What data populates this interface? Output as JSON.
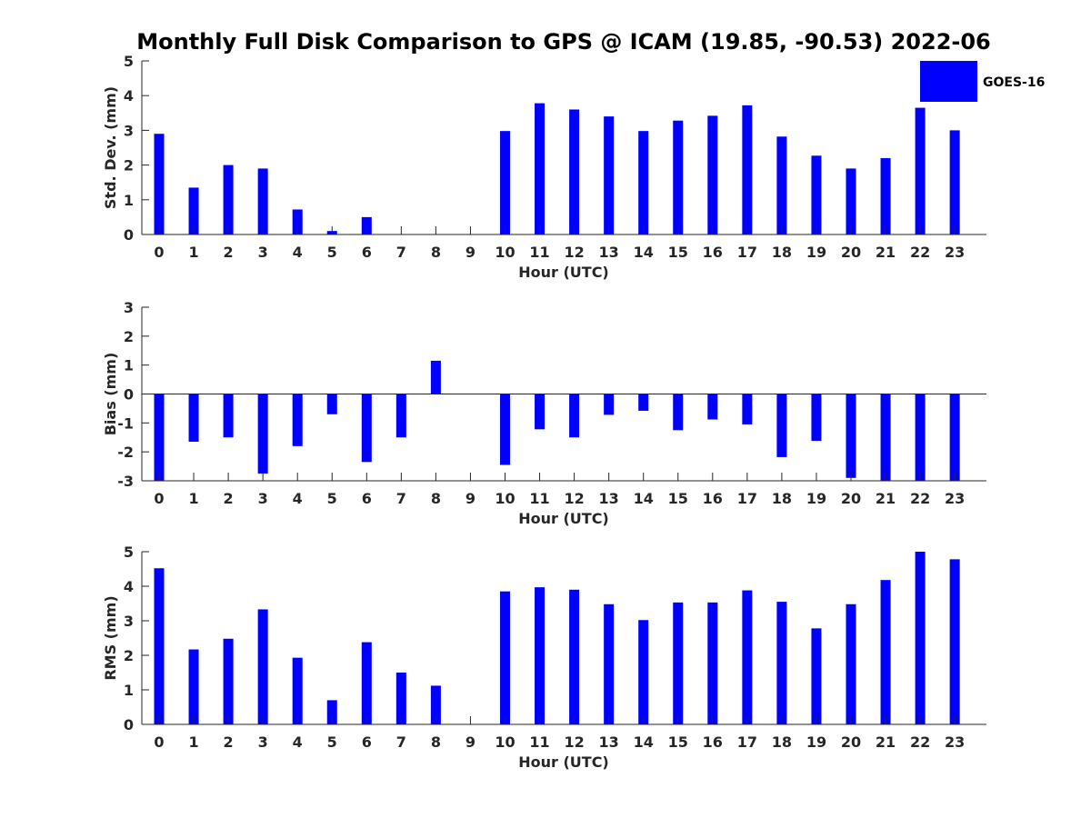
{
  "figure": {
    "title": "Monthly Full Disk Comparison to GPS @ ICAM (19.85, -90.53) 2022-06",
    "background": "#ffffff"
  },
  "legend": {
    "label": "GOES-16",
    "color": "#0000ff",
    "placement": "top-right"
  },
  "chart_data": [
    {
      "type": "bar",
      "panel": "std",
      "title": "",
      "xlabel": "Hour (UTC)",
      "ylabel": "Std. Dev. (mm)",
      "ylim": [
        0,
        5
      ],
      "yticks": [
        0,
        1,
        2,
        3,
        4,
        5
      ],
      "categories": [
        "0",
        "1",
        "2",
        "3",
        "4",
        "5",
        "6",
        "7",
        "8",
        "9",
        "10",
        "11",
        "12",
        "13",
        "14",
        "15",
        "16",
        "17",
        "18",
        "19",
        "20",
        "21",
        "22",
        "23"
      ],
      "series": [
        {
          "name": "GOES-16",
          "color": "#0000ff",
          "values": [
            2.9,
            1.35,
            2.0,
            1.9,
            0.72,
            0.1,
            0.5,
            0,
            0,
            0,
            2.98,
            3.78,
            3.6,
            3.4,
            2.98,
            3.28,
            3.42,
            3.72,
            2.82,
            2.27,
            1.9,
            2.2,
            3.65,
            3.0
          ]
        }
      ],
      "grid": false
    },
    {
      "type": "bar",
      "panel": "bias",
      "title": "",
      "xlabel": "Hour (UTC)",
      "ylabel": "Bias (mm)",
      "ylim": [
        -3,
        3
      ],
      "yticks": [
        -3,
        -2,
        -1,
        0,
        1,
        2,
        3
      ],
      "categories": [
        "0",
        "1",
        "2",
        "3",
        "4",
        "5",
        "6",
        "7",
        "8",
        "9",
        "10",
        "11",
        "12",
        "13",
        "14",
        "15",
        "16",
        "17",
        "18",
        "19",
        "20",
        "21",
        "22",
        "23"
      ],
      "series": [
        {
          "name": "GOES-16",
          "color": "#0000ff",
          "values": [
            -3.0,
            -1.65,
            -1.5,
            -2.75,
            -1.8,
            -0.7,
            -2.35,
            -1.5,
            1.15,
            0,
            -2.45,
            -1.22,
            -1.5,
            -0.72,
            -0.58,
            -1.25,
            -0.88,
            -1.05,
            -2.18,
            -1.62,
            -2.9,
            -3.0,
            -3.0,
            -3.0
          ]
        }
      ],
      "grid": false
    },
    {
      "type": "bar",
      "panel": "rms",
      "title": "",
      "xlabel": "Hour (UTC)",
      "ylabel": "RMS (mm)",
      "ylim": [
        0,
        5
      ],
      "yticks": [
        0,
        1,
        2,
        3,
        4,
        5
      ],
      "categories": [
        "0",
        "1",
        "2",
        "3",
        "4",
        "5",
        "6",
        "7",
        "8",
        "9",
        "10",
        "11",
        "12",
        "13",
        "14",
        "15",
        "16",
        "17",
        "18",
        "19",
        "20",
        "21",
        "22",
        "23"
      ],
      "series": [
        {
          "name": "GOES-16",
          "color": "#0000ff",
          "values": [
            4.52,
            2.17,
            2.48,
            3.33,
            1.93,
            0.7,
            2.38,
            1.5,
            1.12,
            0,
            3.85,
            3.97,
            3.9,
            3.48,
            3.02,
            3.53,
            3.53,
            3.88,
            3.55,
            2.78,
            3.48,
            4.18,
            5.0,
            4.78
          ]
        }
      ],
      "grid": false
    }
  ]
}
